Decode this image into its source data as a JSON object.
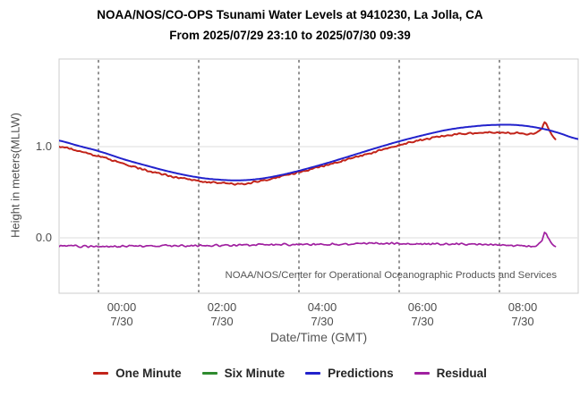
{
  "header": {
    "title": "NOAA/NOS/CO-OPS Tsunami Water Levels at 9410230, La Jolla, CA",
    "subtitle": "From 2025/07/30 09:39",
    "title_line1": "NOAA/NOS/CO-OPS Tsunami Water Levels at 9410230, La Jolla, CA",
    "title_line2": "From 2025/07/29 23:10 to 2025/07/30 09:39"
  },
  "chart_data": {
    "type": "line",
    "title": "NOAA/NOS/CO-OPS Tsunami Water Levels at 9410230, La Jolla, CA",
    "subtitle": "From 2025/07/29 23:10 to 2025/07/30 09:39",
    "station": "9410230, La Jolla, CA",
    "xlabel": "Date/Time (GMT)",
    "ylabel": "Height in meters(MLLW)",
    "watermark": "NOAA/NOS/Center for Operational Oceanographic Products and Services",
    "x_unit": "hours since 2025/07/29 23:10 GMT",
    "x_range_hours": [
      0,
      10.48
    ],
    "ylim": [
      -0.61,
      1.96
    ],
    "grid": {
      "vertical": "dashed",
      "horizontal": "solid"
    },
    "legend_position": "bottom",
    "yticks": [
      {
        "v": 1.0,
        "label": "1.0"
      },
      {
        "v": 0.0,
        "label": "0.0"
      }
    ],
    "xticks": [
      {
        "t": 0.8333,
        "time": "00:00",
        "date": "7/30"
      },
      {
        "t": 2.8333,
        "time": "02:00",
        "date": "7/30"
      },
      {
        "t": 4.8333,
        "time": "04:00",
        "date": "7/30"
      },
      {
        "t": 6.8333,
        "time": "06:00",
        "date": "7/30"
      },
      {
        "t": 8.8333,
        "time": "08:00",
        "date": "7/30"
      }
    ],
    "series": [
      {
        "name": "One Minute",
        "color": "#c2241a",
        "noise": 0.012,
        "points": [
          [
            0,
            1.005
          ],
          [
            0.5,
            0.945
          ],
          [
            0.8333,
            0.895
          ],
          [
            1.3333,
            0.815
          ],
          [
            1.8333,
            0.735
          ],
          [
            2.3333,
            0.67
          ],
          [
            2.8333,
            0.625
          ],
          [
            3.2333,
            0.603
          ],
          [
            3.5833,
            0.592
          ],
          [
            3.9333,
            0.61
          ],
          [
            4.3333,
            0.655
          ],
          [
            4.8333,
            0.72
          ],
          [
            5.3333,
            0.79
          ],
          [
            5.8333,
            0.865
          ],
          [
            6.3333,
            0.94
          ],
          [
            6.8333,
            1.015
          ],
          [
            7.3333,
            1.08
          ],
          [
            7.8333,
            1.125
          ],
          [
            8.3333,
            1.15
          ],
          [
            8.7333,
            1.158
          ],
          [
            9.1333,
            1.148
          ],
          [
            9.4133,
            1.14
          ],
          [
            9.5633,
            1.148
          ],
          [
            9.6833,
            1.2
          ],
          [
            9.7333,
            1.265
          ],
          [
            9.8,
            1.21
          ],
          [
            9.8833,
            1.12
          ],
          [
            9.95,
            1.08
          ]
        ]
      },
      {
        "name": "Six Minute",
        "color": "#2e8b2e",
        "noise": 0,
        "points": []
      },
      {
        "name": "Predictions",
        "color": "#2222cc",
        "noise": 0,
        "points": [
          [
            0,
            1.07
          ],
          [
            0.5,
            1.0
          ],
          [
            0.8333,
            0.95
          ],
          [
            1.3333,
            0.862
          ],
          [
            1.8333,
            0.785
          ],
          [
            2.3333,
            0.715
          ],
          [
            2.8333,
            0.662
          ],
          [
            3.2333,
            0.638
          ],
          [
            3.5833,
            0.63
          ],
          [
            3.9333,
            0.64
          ],
          [
            4.3333,
            0.673
          ],
          [
            4.8333,
            0.735
          ],
          [
            5.3333,
            0.81
          ],
          [
            5.8333,
            0.893
          ],
          [
            6.3333,
            0.978
          ],
          [
            6.8333,
            1.058
          ],
          [
            7.3333,
            1.128
          ],
          [
            7.8333,
            1.188
          ],
          [
            8.3333,
            1.223
          ],
          [
            8.7333,
            1.238
          ],
          [
            9.1333,
            1.238
          ],
          [
            9.5333,
            1.213
          ],
          [
            9.9333,
            1.163
          ],
          [
            10.42,
            1.082
          ]
        ]
      },
      {
        "name": "Residual",
        "color": "#a020a0",
        "noise": 0.013,
        "points": [
          [
            0,
            -0.09
          ],
          [
            0.5,
            -0.093
          ],
          [
            1,
            -0.095
          ],
          [
            1.5,
            -0.092
          ],
          [
            2,
            -0.09
          ],
          [
            2.5,
            -0.088
          ],
          [
            3,
            -0.085
          ],
          [
            3.5,
            -0.082
          ],
          [
            4,
            -0.078
          ],
          [
            4.5,
            -0.075
          ],
          [
            5,
            -0.072
          ],
          [
            5.5,
            -0.07
          ],
          [
            6,
            -0.066
          ],
          [
            6.5,
            -0.06
          ],
          [
            7,
            -0.064
          ],
          [
            7.5,
            -0.068
          ],
          [
            8,
            -0.068
          ],
          [
            8.5,
            -0.073
          ],
          [
            9,
            -0.08
          ],
          [
            9.4133,
            -0.095
          ],
          [
            9.5633,
            -0.085
          ],
          [
            9.6833,
            -0.025
          ],
          [
            9.7333,
            0.058
          ],
          [
            9.8,
            0.01
          ],
          [
            9.8833,
            -0.07
          ],
          [
            9.95,
            -0.095
          ]
        ]
      }
    ]
  }
}
